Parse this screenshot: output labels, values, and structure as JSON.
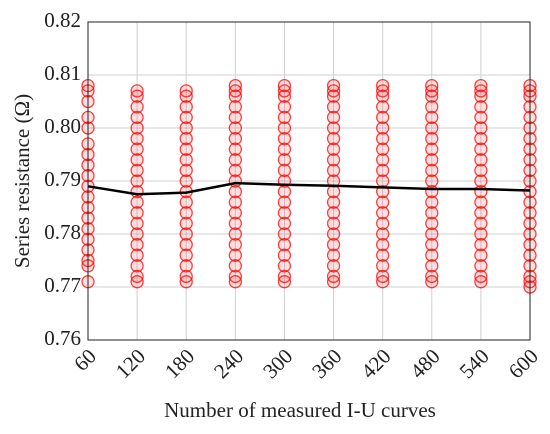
{
  "chart_data": {
    "type": "scatter",
    "xlabel": "Number of measured I-U curves",
    "ylabel": "Series resistance (Ω)",
    "xlim": [
      60,
      600
    ],
    "xticks": [
      60,
      120,
      180,
      240,
      300,
      360,
      420,
      480,
      540,
      600
    ],
    "ylim": [
      0.76,
      0.82
    ],
    "yticks": [
      0.76,
      0.77,
      0.78,
      0.79,
      {
        "value": 0.8,
        "label": "0.80"
      },
      0.81,
      0.82
    ],
    "grid": true,
    "marker_color": "#ff0000",
    "groups": [
      {
        "x": 60,
        "values": [
          0.771,
          0.774,
          0.775,
          0.777,
          0.779,
          0.781,
          0.783,
          0.785,
          0.787,
          0.789,
          0.791,
          0.793,
          0.795,
          0.797,
          0.8,
          0.802,
          0.805,
          0.807,
          0.808
        ]
      },
      {
        "x": 120,
        "values": [
          0.771,
          0.772,
          0.774,
          0.776,
          0.778,
          0.78,
          0.782,
          0.784,
          0.786,
          0.788,
          0.79,
          0.792,
          0.794,
          0.796,
          0.798,
          0.8,
          0.802,
          0.804,
          0.806,
          0.807
        ]
      },
      {
        "x": 180,
        "values": [
          0.771,
          0.772,
          0.774,
          0.776,
          0.778,
          0.78,
          0.782,
          0.784,
          0.786,
          0.788,
          0.79,
          0.792,
          0.794,
          0.796,
          0.798,
          0.8,
          0.802,
          0.804,
          0.806,
          0.807
        ]
      },
      {
        "x": 240,
        "values": [
          0.771,
          0.772,
          0.774,
          0.776,
          0.778,
          0.78,
          0.782,
          0.784,
          0.786,
          0.788,
          0.79,
          0.792,
          0.794,
          0.796,
          0.798,
          0.8,
          0.802,
          0.804,
          0.806,
          0.807,
          0.808
        ]
      },
      {
        "x": 300,
        "values": [
          0.771,
          0.772,
          0.774,
          0.776,
          0.778,
          0.78,
          0.782,
          0.784,
          0.786,
          0.788,
          0.79,
          0.792,
          0.794,
          0.796,
          0.798,
          0.8,
          0.802,
          0.804,
          0.806,
          0.807,
          0.808
        ]
      },
      {
        "x": 360,
        "values": [
          0.771,
          0.772,
          0.774,
          0.776,
          0.778,
          0.78,
          0.782,
          0.784,
          0.786,
          0.788,
          0.79,
          0.792,
          0.794,
          0.796,
          0.798,
          0.8,
          0.802,
          0.804,
          0.806,
          0.807,
          0.808
        ]
      },
      {
        "x": 420,
        "values": [
          0.771,
          0.772,
          0.774,
          0.776,
          0.778,
          0.78,
          0.782,
          0.784,
          0.786,
          0.788,
          0.79,
          0.792,
          0.794,
          0.796,
          0.798,
          0.8,
          0.802,
          0.804,
          0.806,
          0.807,
          0.808
        ]
      },
      {
        "x": 480,
        "values": [
          0.771,
          0.772,
          0.774,
          0.776,
          0.778,
          0.78,
          0.782,
          0.784,
          0.786,
          0.788,
          0.79,
          0.792,
          0.794,
          0.796,
          0.798,
          0.8,
          0.802,
          0.804,
          0.806,
          0.807,
          0.808
        ]
      },
      {
        "x": 540,
        "values": [
          0.771,
          0.772,
          0.774,
          0.776,
          0.778,
          0.78,
          0.782,
          0.784,
          0.786,
          0.788,
          0.79,
          0.792,
          0.794,
          0.796,
          0.798,
          0.8,
          0.802,
          0.804,
          0.806,
          0.807,
          0.808
        ]
      },
      {
        "x": 600,
        "values": [
          0.77,
          0.771,
          0.772,
          0.774,
          0.776,
          0.778,
          0.78,
          0.782,
          0.784,
          0.786,
          0.788,
          0.79,
          0.792,
          0.794,
          0.796,
          0.798,
          0.8,
          0.802,
          0.804,
          0.806,
          0.807,
          0.808
        ]
      }
    ],
    "line": {
      "color": "#000000",
      "x": [
        60,
        120,
        180,
        240,
        300,
        360,
        420,
        480,
        540,
        600
      ],
      "values": [
        0.789,
        0.7875,
        0.7878,
        0.7896,
        0.7893,
        0.7891,
        0.7888,
        0.7885,
        0.7885,
        0.7882
      ]
    }
  }
}
